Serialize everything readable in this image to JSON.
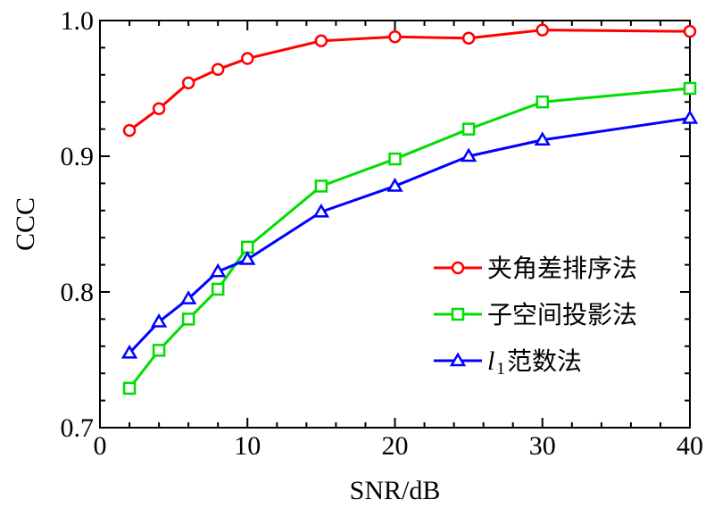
{
  "chart_data": {
    "type": "line",
    "xlabel": "SNR/dB",
    "ylabel": "CCC",
    "xlim": [
      0,
      40
    ],
    "ylim": [
      0.7,
      1.0
    ],
    "x_ticks": [
      0,
      10,
      20,
      30,
      40
    ],
    "x_tick_labels": [
      "0",
      "10",
      "20",
      "30",
      "40"
    ],
    "y_ticks": [
      0.7,
      0.8,
      0.9,
      1.0
    ],
    "y_tick_labels": [
      "0.7",
      "0.8",
      "0.9",
      "1.0"
    ],
    "grid": false,
    "legend_position": "center-right",
    "x": [
      2,
      4,
      6,
      8,
      10,
      15,
      20,
      25,
      30,
      40
    ],
    "series": [
      {
        "name": "夹角差排序法",
        "color": "#ff0000",
        "marker": "circle",
        "values": [
          0.919,
          0.935,
          0.954,
          0.964,
          0.972,
          0.985,
          0.988,
          0.987,
          0.993,
          0.992
        ]
      },
      {
        "name": "子空间投影法",
        "color": "#00dd00",
        "marker": "square",
        "values": [
          0.729,
          0.757,
          0.78,
          0.802,
          0.833,
          0.878,
          0.898,
          0.92,
          0.94,
          0.95
        ]
      },
      {
        "name_italic": "l",
        "name_sub": "1",
        "name": "范数法",
        "color": "#0000ff",
        "marker": "triangle",
        "values": [
          0.755,
          0.778,
          0.795,
          0.815,
          0.824,
          0.859,
          0.878,
          0.9,
          0.912,
          0.928
        ]
      }
    ]
  }
}
